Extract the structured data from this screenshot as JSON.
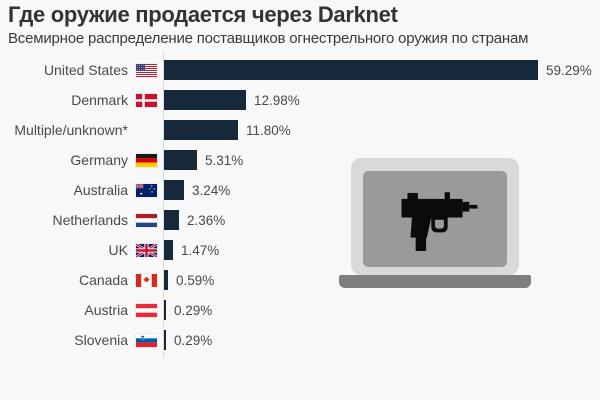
{
  "title": "Где оружие продается через Darknet",
  "subtitle": "Всемирное распределение поставщиков огнестрельного оружия по странам",
  "colors": {
    "background": "#f8f8f8",
    "bar": "#16293a",
    "axis_line": "#d8d8d8",
    "title_text": "#333333",
    "subtitle_text": "#3a3a3a",
    "label_text": "#4a4a4a",
    "laptop_body": "#d9d9d9",
    "laptop_screen": "#9a9a9a",
    "laptop_base": "#7e7e7e",
    "gun": "#0b0b0b"
  },
  "chart_data": {
    "type": "bar",
    "orientation": "horizontal",
    "title": "Где оружие продается через Darknet",
    "subtitle": "Всемирное распределение поставщиков огнестрельного оружия по странам",
    "categories": [
      "United States",
      "Denmark",
      "Multiple/unknown*",
      "Germany",
      "Australia",
      "Netherlands",
      "UK",
      "Canada",
      "Austria",
      "Slovenia"
    ],
    "values": [
      59.29,
      12.98,
      11.8,
      5.31,
      3.24,
      2.36,
      1.47,
      0.59,
      0.29,
      0.29
    ],
    "value_labels": [
      "59.29%",
      "12.98%",
      "11.80%",
      "5.31%",
      "3.24%",
      "2.36%",
      "1.47%",
      "0.59%",
      "0.29%",
      "0.29%"
    ],
    "flags": [
      "us",
      "dk",
      "none",
      "de",
      "au",
      "nl",
      "uk",
      "ca",
      "at",
      "si"
    ],
    "flag_icon_names": [
      "us-flag-icon",
      "denmark-flag-icon",
      "",
      "germany-flag-icon",
      "australia-flag-icon",
      "netherlands-flag-icon",
      "uk-flag-icon",
      "canada-flag-icon",
      "austria-flag-icon",
      "slovenia-flag-icon"
    ],
    "xlim": [
      0,
      63
    ],
    "grid": false,
    "legend": false,
    "bar_color": "#16293a",
    "unit": "%"
  },
  "illustration": {
    "name": "laptop-with-uzi",
    "gun_icon": "uzi-gun-icon"
  }
}
